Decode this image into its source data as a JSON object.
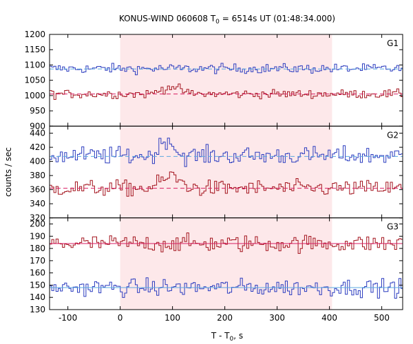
{
  "chart_data": {
    "type": "line",
    "title_main": "KONUS-WIND 060608 T",
    "title_sub": "0",
    "title_rest": " = 6514s UT (01:48:34.000)",
    "xlabel_main": "T - T",
    "xlabel_sub": "0",
    "xlabel_rest": ", s",
    "ylabel": "counts / sec",
    "xlim": [
      -135,
      540
    ],
    "xticks": [
      -100,
      0,
      100,
      200,
      300,
      400,
      500
    ],
    "highlight_interval": [
      0,
      405
    ],
    "bin_width": 4.096,
    "colors": {
      "blue": "#2a3bbf",
      "red": "#a3121c",
      "bg_line": "#5aa8e0",
      "bg_line_red": "#d81b60",
      "shade": "#fde8ea"
    },
    "panels": [
      {
        "label": "G1",
        "ylim": [
          900,
          1200
        ],
        "yticks": [
          900,
          950,
          1000,
          1050,
          1100,
          1150,
          1200
        ],
        "series": [
          {
            "color": "blue",
            "base": 1088,
            "noise": 11,
            "bg": 1087,
            "bumps": []
          },
          {
            "color": "red",
            "base": 1005,
            "noise": 10,
            "bg": 1005,
            "bumps": [
              {
                "start": 55,
                "end": 135,
                "amp": 20
              }
            ]
          }
        ]
      },
      {
        "label": "G2",
        "ylim": [
          320,
          450
        ],
        "yticks": [
          320,
          340,
          360,
          380,
          400,
          420,
          440
        ],
        "series": [
          {
            "color": "blue",
            "base": 408,
            "noise": 9,
            "bg": 407,
            "bumps": [
              {
                "start": 60,
                "end": 115,
                "amp": 20
              }
            ]
          },
          {
            "color": "red",
            "base": 362,
            "noise": 8,
            "bg": 362,
            "bumps": [
              {
                "start": 55,
                "end": 135,
                "amp": 14
              }
            ]
          }
        ]
      },
      {
        "label": "G3",
        "ylim": [
          130,
          205
        ],
        "yticks": [
          130,
          140,
          150,
          160,
          170,
          180,
          190,
          200
        ],
        "series": [
          {
            "color": "red",
            "base": 184,
            "noise": 5,
            "bg": 184,
            "bumps": []
          },
          {
            "color": "blue",
            "base": 148,
            "noise": 5,
            "bg": 148,
            "bumps": []
          }
        ]
      }
    ]
  }
}
